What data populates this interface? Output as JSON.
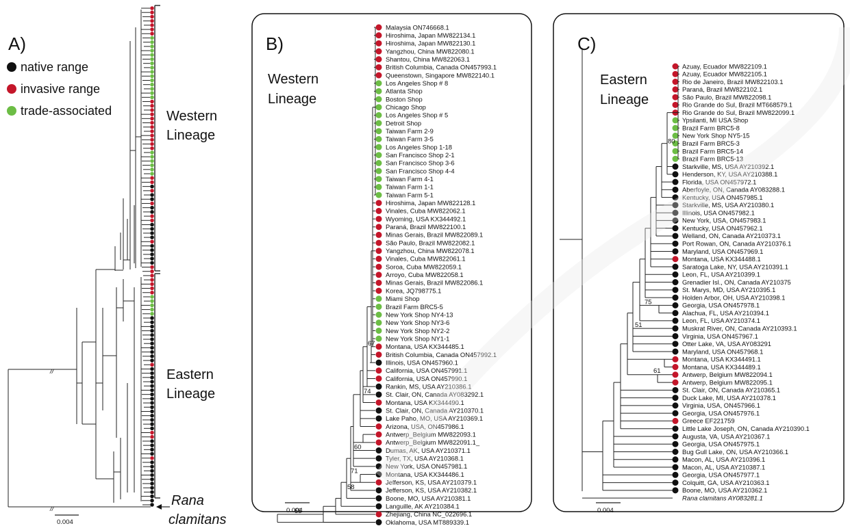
{
  "colors": {
    "native": "#111111",
    "invasive": "#c4162a",
    "trade": "#6cbd45"
  },
  "panel_a": {
    "letter": "A)",
    "legend": [
      {
        "status": "native",
        "label": "native range"
      },
      {
        "status": "invasive",
        "label": "invasive range"
      },
      {
        "status": "trade",
        "label": "trade-associated"
      }
    ],
    "western_label": [
      "Western",
      "Lineage"
    ],
    "eastern_label": [
      "Eastern",
      "Lineage"
    ],
    "outgroup_label": [
      "Rana",
      "clamitans"
    ],
    "scale_label": "0.004",
    "break_mark": "//",
    "dots": [
      "invasive",
      "invasive",
      "invasive",
      "invasive",
      "invasive",
      "invasive",
      "invasive",
      "trade",
      "trade",
      "trade",
      "trade",
      "trade",
      "trade",
      "trade",
      "trade",
      "trade",
      "trade",
      "trade",
      "trade",
      "trade",
      "trade",
      "trade",
      "invasive",
      "invasive",
      "invasive",
      "invasive",
      "invasive",
      "invasive",
      "invasive",
      "invasive",
      "invasive",
      "invasive",
      "invasive",
      "invasive",
      "trade",
      "trade",
      "trade",
      "trade",
      "trade",
      "trade",
      "invasive",
      "invasive",
      "native",
      "invasive",
      "native",
      "native",
      "invasive",
      "native",
      "native",
      "invasive",
      "invasive",
      "native",
      "native",
      "native",
      "native",
      "invasive",
      "native",
      "native",
      "native",
      "native",
      "native",
      "invasive",
      "invasive",
      "invasive",
      "invasive",
      "invasive",
      "invasive",
      "invasive",
      "trade",
      "trade",
      "trade",
      "trade",
      "trade",
      "native",
      "native",
      "native",
      "native",
      "native",
      "native",
      "native",
      "native",
      "native",
      "native",
      "native",
      "invasive",
      "native",
      "native",
      "native",
      "native",
      "native",
      "native",
      "native",
      "native",
      "native",
      "native",
      "native",
      "native",
      "native",
      "native",
      "native",
      "invasive",
      "invasive",
      "native",
      "native",
      "native",
      "native",
      "invasive",
      "native",
      "native",
      "native",
      "native",
      "native",
      "native",
      "native",
      "native",
      "native",
      "native",
      "native"
    ]
  },
  "panel_b": {
    "letter": "B)",
    "lineage_label": [
      "Western",
      "Lineage"
    ],
    "scale_label": "0.004",
    "leaves": [
      {
        "name": "Malaysia ON746668.1",
        "status": "invasive"
      },
      {
        "name": "Hiroshima, Japan MW822134.1",
        "status": "invasive"
      },
      {
        "name": "Hiroshima, Japan MW822130.1",
        "status": "invasive"
      },
      {
        "name": "Yangzhou, China MW822080.1",
        "status": "invasive"
      },
      {
        "name": "Shantou, China MW822063.1",
        "status": "invasive"
      },
      {
        "name": "British Columbia, Canada ON457993.1",
        "status": "invasive"
      },
      {
        "name": "Queenstown, Singapore MW822140.1",
        "status": "invasive"
      },
      {
        "name": "Los Angeles Shop # 8",
        "status": "trade"
      },
      {
        "name": "Atlanta Shop",
        "status": "trade"
      },
      {
        "name": "Boston Shop",
        "status": "trade"
      },
      {
        "name": "Chicago Shop",
        "status": "trade"
      },
      {
        "name": "Los Angeles Shop # 5",
        "status": "trade"
      },
      {
        "name": "Detroit Shop",
        "status": "trade"
      },
      {
        "name": "Taiwan Farm 2-9",
        "status": "trade"
      },
      {
        "name": "Taiwan Farm 3-5",
        "status": "trade"
      },
      {
        "name": "Los Angeles Shop 1-18",
        "status": "trade"
      },
      {
        "name": "San Francisco Shop 2-1",
        "status": "trade"
      },
      {
        "name": "San Francisco Shop 3-6",
        "status": "trade"
      },
      {
        "name": "San Francisco Shop 4-4",
        "status": "trade"
      },
      {
        "name": "Taiwan Farm 4-1",
        "status": "trade"
      },
      {
        "name": "Taiwan Farm 1-1",
        "status": "trade"
      },
      {
        "name": "Taiwan Farm 5-1",
        "status": "trade"
      },
      {
        "name": "Hiroshima, Japan MW822128.1",
        "status": "invasive"
      },
      {
        "name": "Vinales, Cuba MW822062.1",
        "status": "invasive"
      },
      {
        "name": "Wyoming, USA KX344492.1",
        "status": "invasive"
      },
      {
        "name": "Paraná, Brazil MW822100.1",
        "status": "invasive"
      },
      {
        "name": "Minas Gerais, Brazil MW822089.1",
        "status": "invasive"
      },
      {
        "name": "São Paulo, Brazil MW822082.1",
        "status": "invasive"
      },
      {
        "name": "Yangzhou, China MW822078.1",
        "status": "invasive"
      },
      {
        "name": "Vinales, Cuba MW822061.1",
        "status": "invasive"
      },
      {
        "name": "Soroa, Cuba MW822059.1",
        "status": "invasive"
      },
      {
        "name": "Arroyo, Cuba MW822058.1",
        "status": "invasive"
      },
      {
        "name": "Minas Gerais, Brazil MW822086.1",
        "status": "invasive"
      },
      {
        "name": "Korea, JQ798775.1",
        "status": "invasive"
      },
      {
        "name": "Miami Shop",
        "status": "trade"
      },
      {
        "name": "Brazil Farm BRC5-5",
        "status": "trade"
      },
      {
        "name": "New York Shop NY4-13",
        "status": "trade"
      },
      {
        "name": "New York Shop NY3-6",
        "status": "trade"
      },
      {
        "name": "New York Shop NY2-2",
        "status": "trade"
      },
      {
        "name": "New York Shop NY1-1",
        "status": "trade"
      },
      {
        "name": "Montana, USA KX344485.1",
        "status": "invasive"
      },
      {
        "name": "British Columbia, Canada ON457992.1",
        "status": "invasive"
      },
      {
        "name": "Illinois, USA ON457960.1",
        "status": "native"
      },
      {
        "name": "California, USA ON457991.1",
        "status": "invasive"
      },
      {
        "name": "California, USA ON457990.1",
        "status": "invasive"
      },
      {
        "name": "Rankin, MS, USA AY210386.1",
        "status": "native"
      },
      {
        "name": "St. Clair, ON, Canada AY083292.1",
        "status": "native"
      },
      {
        "name": "Montana, USA KX344490.1",
        "status": "invasive"
      },
      {
        "name": "St. Clair, ON, Canada AY210370.1",
        "status": "native"
      },
      {
        "name": "Lake Paho, MO, USA AY210369.1",
        "status": "native"
      },
      {
        "name": "Arizona, USA, ON457986.1",
        "status": "invasive"
      },
      {
        "name": "Antwerp_Belgium MW822093.1",
        "status": "invasive"
      },
      {
        "name": "Antwerp_Belgium MW822091.1_",
        "status": "invasive"
      },
      {
        "name": "Dumas, AK, USA AY210371.1",
        "status": "native"
      },
      {
        "name": "Tyler, TX, USA AY210368.1",
        "status": "native"
      },
      {
        "name": "New York, USA ON457981.1",
        "status": "native"
      },
      {
        "name": "Montana, USA KX344486.1",
        "status": "native"
      },
      {
        "name": "Jefferson, KS, USA AY210379.1",
        "status": "invasive"
      },
      {
        "name": "Jefferson, KS, USA AY210382.1",
        "status": "native"
      },
      {
        "name": "Boone, MO, USA AY210381.1",
        "status": "native"
      },
      {
        "name": "Languille, AK AY210384.1",
        "status": "native"
      },
      {
        "name": "Zhejiang, China NC_022696.1",
        "status": "invasive"
      },
      {
        "name": "Oklahoma, USA MT889339.1",
        "status": "native"
      }
    ],
    "bootstrap": [
      "67",
      "74",
      "60",
      "71",
      "58",
      "55"
    ]
  },
  "panel_c": {
    "letter": "C)",
    "lineage_label": [
      "Eastern",
      "Lineage"
    ],
    "scale_label": "0.004",
    "leaves": [
      {
        "name": "Azuay, Ecuador MW822109.1",
        "status": "invasive"
      },
      {
        "name": "Azuay, Ecuador MW822105.1",
        "status": "invasive"
      },
      {
        "name": "Rio de Janeiro, Brazil MW822103.1",
        "status": "invasive"
      },
      {
        "name": "Paraná, Brazil MW822102.1",
        "status": "invasive"
      },
      {
        "name": "São Paulo, Brazil MW822098.1",
        "status": "invasive"
      },
      {
        "name": "Rio Grande do Sul, Brazil MT668579.1",
        "status": "invasive"
      },
      {
        "name": "Rio Grande do Sul, Brazil MW822099.1",
        "status": "invasive"
      },
      {
        "name": "Ypsilanti, MI USA Shop",
        "status": "trade"
      },
      {
        "name": "Brazil Farm BRC5-8",
        "status": "trade"
      },
      {
        "name": "New York Shop NY5-15",
        "status": "trade"
      },
      {
        "name": "Brazil Farm BRC5-3",
        "status": "trade"
      },
      {
        "name": "Brazil Farm BRC5-14",
        "status": "trade"
      },
      {
        "name": "Brazil Farm BRC5-13",
        "status": "trade"
      },
      {
        "name": "Starkville, MS, USA AY210392.1",
        "status": "native"
      },
      {
        "name": "Henderson, KY, USA AY210388.1",
        "status": "native"
      },
      {
        "name": "Florida, USA ON457972.1",
        "status": "native"
      },
      {
        "name": "Aberfoyle, ON, Canada AY083288.1",
        "status": "native"
      },
      {
        "name": "Kentucky, USA ON457985.1",
        "status": "native"
      },
      {
        "name": "Starkville, MS, USA AY210380.1",
        "status": "native"
      },
      {
        "name": "Illinois, USA ON457982.1",
        "status": "native"
      },
      {
        "name": "New York, USA, ON457983.1",
        "status": "native"
      },
      {
        "name": "Kentucky, USA ON457962.1",
        "status": "native"
      },
      {
        "name": "Welland, ON, Canada AY210373.1",
        "status": "native"
      },
      {
        "name": "Port Rowan, ON, Canada AY210376.1",
        "status": "native"
      },
      {
        "name": "Maryland, USA ON457969.1",
        "status": "native"
      },
      {
        "name": "Montana, USA KX344488.1",
        "status": "invasive"
      },
      {
        "name": "Saratoga Lake, NY, USA AY210391.1",
        "status": "native"
      },
      {
        "name": "Leon, FL, USA AY210399.1",
        "status": "native"
      },
      {
        "name": "Grenadier Isl., ON, Canada AY210375",
        "status": "native"
      },
      {
        "name": "St. Marys, MD, USA AY210395.1",
        "status": "native"
      },
      {
        "name": "Holden Arbor, OH, USA AY210398.1",
        "status": "native"
      },
      {
        "name": "Georgia, USA ON457978.1",
        "status": "native"
      },
      {
        "name": "Alachua, FL, USA AY210394.1",
        "status": "native"
      },
      {
        "name": "Leon, FL, USA AY210374.1",
        "status": "native"
      },
      {
        "name": "Muskrat River, ON, Canada AY210393.1",
        "status": "native"
      },
      {
        "name": "Virginia, USA ON457967.1",
        "status": "native"
      },
      {
        "name": "Otter Lake, VA, USA AY083291",
        "status": "native"
      },
      {
        "name": "Maryland, USA ON457968.1",
        "status": "native"
      },
      {
        "name": "Montana, USA KX344491.1",
        "status": "invasive"
      },
      {
        "name": "Montana, USA KX344489.1",
        "status": "invasive"
      },
      {
        "name": "Antwerp, Belgium MW822094.1",
        "status": "invasive"
      },
      {
        "name": "Antwerp, Belgium MW822095.1",
        "status": "invasive"
      },
      {
        "name": "St. Clair, ON, Canada AY210365.1",
        "status": "native"
      },
      {
        "name": "Duck Lake, MI, USA AY210378.1",
        "status": "native"
      },
      {
        "name": "Virginia, USA, ON457966.1",
        "status": "native"
      },
      {
        "name": "Georgia, USA ON457976.1",
        "status": "native"
      },
      {
        "name": "Greece EF221759",
        "status": "invasive"
      },
      {
        "name": "Little Lake Joseph, ON, Canada AY210390.1",
        "status": "native"
      },
      {
        "name": "Augusta, VA, USA AY210367.1",
        "status": "native"
      },
      {
        "name": "Georgia, USA ON457975.1",
        "status": "native"
      },
      {
        "name": "Bug Gull Lake, ON, USA AY210366.1",
        "status": "native"
      },
      {
        "name": "Macon, AL, USA AY210396.1",
        "status": "native"
      },
      {
        "name": "Macon, AL, USA AY210387.1",
        "status": "native"
      },
      {
        "name": "Georgia, USA ON457977.1",
        "status": "native"
      },
      {
        "name": "Colquitt, GA, USA AY210363.1",
        "status": "native"
      },
      {
        "name": "Boone, MO, USA AY210362.1",
        "status": "native"
      },
      {
        "name": "Rana clamitans AY083281.1",
        "status": "none"
      }
    ],
    "bootstrap": [
      "80",
      "75",
      "51",
      "61"
    ]
  }
}
